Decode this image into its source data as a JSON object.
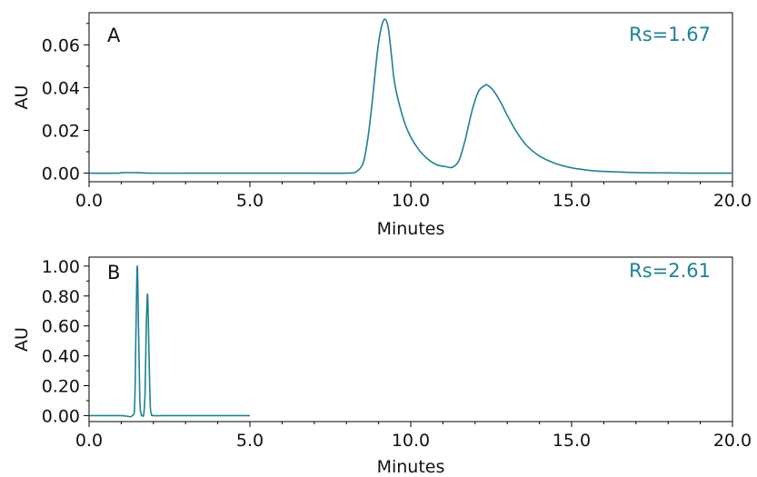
{
  "chart_data": [
    {
      "type": "line",
      "panel_label": "A",
      "annotation": "Rs=1.67",
      "xlabel": "Minutes",
      "ylabel": "AU",
      "xlim": [
        0,
        20
      ],
      "ylim": [
        -0.004,
        0.075
      ],
      "xticks": [
        0,
        5,
        10,
        15,
        20
      ],
      "xtick_labels": [
        "0.0",
        "5.0",
        "10.0",
        "15.0",
        "20.0"
      ],
      "yticks": [
        0,
        0.02,
        0.04,
        0.06
      ],
      "ytick_labels": [
        "0.00",
        "0.02",
        "0.04",
        "0.06"
      ],
      "series": [
        {
          "x": [
            0.0,
            0.9,
            1.0,
            1.5,
            2.0,
            3.0,
            4.0,
            5.0,
            6.0,
            7.0,
            8.0,
            8.3,
            8.5,
            8.6,
            8.7,
            8.8,
            8.9,
            9.0,
            9.1,
            9.2,
            9.3,
            9.4,
            9.5,
            9.7,
            9.9,
            10.2,
            10.5,
            10.8,
            11.1,
            11.3,
            11.5,
            11.7,
            11.9,
            12.1,
            12.3,
            12.4,
            12.6,
            12.8,
            13.0,
            13.3,
            13.6,
            14.0,
            14.5,
            15.0,
            15.5,
            16.0,
            17.0,
            18.0,
            19.0,
            20.0
          ],
          "y": [
            0.0,
            0.0,
            0.0002,
            0.0002,
            0.0,
            0.0,
            0.0,
            0.0,
            0.0,
            0.0,
            0.0,
            0.0006,
            0.004,
            0.01,
            0.02,
            0.033,
            0.048,
            0.061,
            0.069,
            0.072,
            0.068,
            0.055,
            0.042,
            0.029,
            0.02,
            0.012,
            0.007,
            0.004,
            0.003,
            0.0028,
            0.006,
            0.016,
            0.029,
            0.038,
            0.041,
            0.041,
            0.038,
            0.033,
            0.027,
            0.019,
            0.013,
            0.008,
            0.0045,
            0.0025,
            0.0014,
            0.0008,
            0.0003,
            0.0001,
            0.0,
            0.0
          ]
        }
      ]
    },
    {
      "type": "line",
      "panel_label": "B",
      "annotation": "Rs=2.61",
      "xlabel": "Minutes",
      "ylabel": "AU",
      "xlim": [
        0,
        20
      ],
      "ylim": [
        -0.04,
        1.06
      ],
      "xticks": [
        0,
        5,
        10,
        15,
        20
      ],
      "xtick_labels": [
        "0.0",
        "5.0",
        "10.0",
        "15.0",
        "20.0"
      ],
      "yticks": [
        0,
        0.2,
        0.4,
        0.6,
        0.8,
        1.0
      ],
      "ytick_labels": [
        "0.00",
        "0.20",
        "0.40",
        "0.60",
        "0.80",
        "1.00"
      ],
      "series": [
        {
          "x": [
            0.0,
            1.0,
            1.35,
            1.42,
            1.46,
            1.5,
            1.54,
            1.58,
            1.62,
            1.66,
            1.7,
            1.74,
            1.78,
            1.82,
            1.86,
            1.9,
            1.94,
            2.0,
            2.5,
            3.0,
            4.0,
            5.0
          ],
          "y": [
            0.0,
            0.0,
            0.0,
            0.1,
            0.6,
            1.0,
            0.55,
            0.1,
            0.01,
            0.0,
            0.01,
            0.15,
            0.6,
            0.81,
            0.45,
            0.08,
            0.01,
            0.0,
            0.0,
            0.0,
            0.0,
            0.0
          ]
        }
      ]
    }
  ],
  "colors": {
    "trace": "#1f8195",
    "annotation": "#1f8195"
  }
}
